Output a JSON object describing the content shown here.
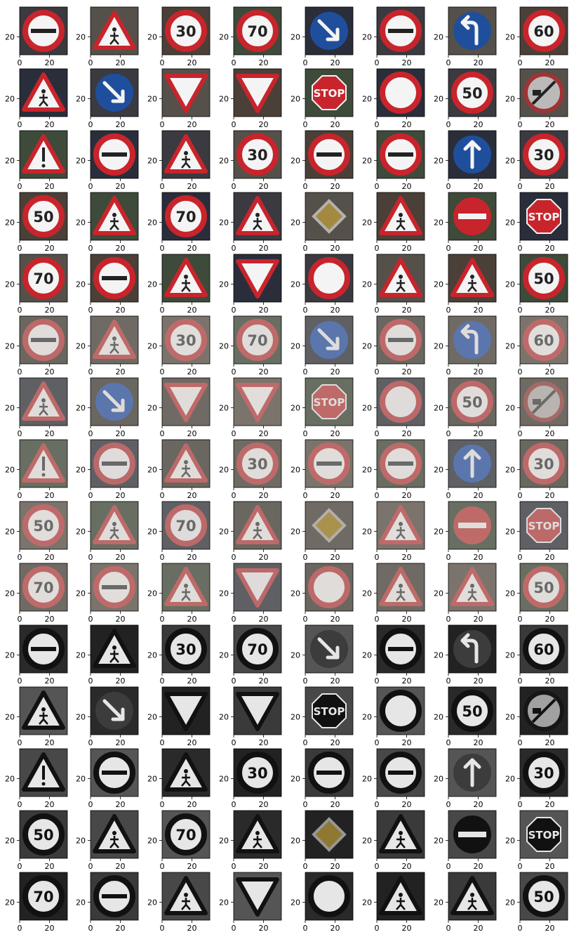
{
  "figure": {
    "rows": 15,
    "cols": 8,
    "axes": {
      "xlim": [
        0,
        32
      ],
      "ylim": [
        32,
        0
      ],
      "x_ticks": [
        "0",
        "20"
      ],
      "y_ticks": [
        "20"
      ]
    },
    "row_styles": [
      "color",
      "color",
      "color",
      "color",
      "color",
      "faded",
      "faded",
      "faded",
      "faded",
      "faded",
      "gray",
      "gray",
      "gray",
      "gray",
      "gray"
    ],
    "tiles": [
      [
        "noentry",
        "triangle",
        "limit30",
        "limit70",
        "arrowDR",
        "noentry",
        "turnleft",
        "limit60"
      ],
      [
        "triangle",
        "arrowDR",
        "yield",
        "yield",
        "stop",
        "noentryblank",
        "limit50",
        "noovertake"
      ],
      [
        "warning",
        "noentry",
        "triangle",
        "limit30",
        "noentry",
        "noentry",
        "ahead",
        "limit30"
      ],
      [
        "limit50",
        "triangle",
        "limit70",
        "triangle",
        "priority",
        "triangle",
        "noentrybar",
        "stop"
      ],
      [
        "limit70",
        "noentry",
        "triangle",
        "yield",
        "noentryblank",
        "triangle",
        "triangle",
        "limit50"
      ],
      [
        "noentry",
        "triangle",
        "limit30",
        "limit70",
        "arrowDR",
        "noentry",
        "turnleft",
        "limit60"
      ],
      [
        "triangle",
        "arrowDR",
        "yield",
        "yield",
        "stop",
        "noentryblank",
        "limit50",
        "noovertake"
      ],
      [
        "warning",
        "noentry",
        "triangle",
        "limit30",
        "noentry",
        "noentry",
        "ahead",
        "limit30"
      ],
      [
        "limit50",
        "triangle",
        "limit70",
        "triangle",
        "priority",
        "triangle",
        "noentrybar",
        "stop"
      ],
      [
        "limit70",
        "noentry",
        "triangle",
        "yield",
        "noentryblank",
        "triangle",
        "triangle",
        "limit50"
      ],
      [
        "noentry",
        "triangle",
        "limit30",
        "limit70",
        "arrowDR",
        "noentry",
        "turnleft",
        "limit60"
      ],
      [
        "triangle",
        "arrowDR",
        "yield",
        "yield",
        "stop",
        "noentryblank",
        "limit50",
        "noovertake"
      ],
      [
        "warning",
        "noentry",
        "triangle",
        "limit30",
        "noentry",
        "noentry",
        "ahead",
        "limit30"
      ],
      [
        "limit50",
        "triangle",
        "limit70",
        "triangle",
        "priority",
        "triangle",
        "noentrybar",
        "stop"
      ],
      [
        "limit70",
        "noentry",
        "triangle",
        "yield",
        "noentryblank",
        "triangle",
        "triangle",
        "limit50"
      ]
    ],
    "sign_text": {
      "limit30": "30",
      "limit50": "50",
      "limit60": "60",
      "limit70": "70",
      "stop": "STOP"
    },
    "colors": {
      "red": "#c8242c",
      "blue": "#1f4f9c",
      "white": "#f4f4f4",
      "dark_bg": "#2e2e32",
      "gray_bg": "#6a6a6a"
    }
  }
}
